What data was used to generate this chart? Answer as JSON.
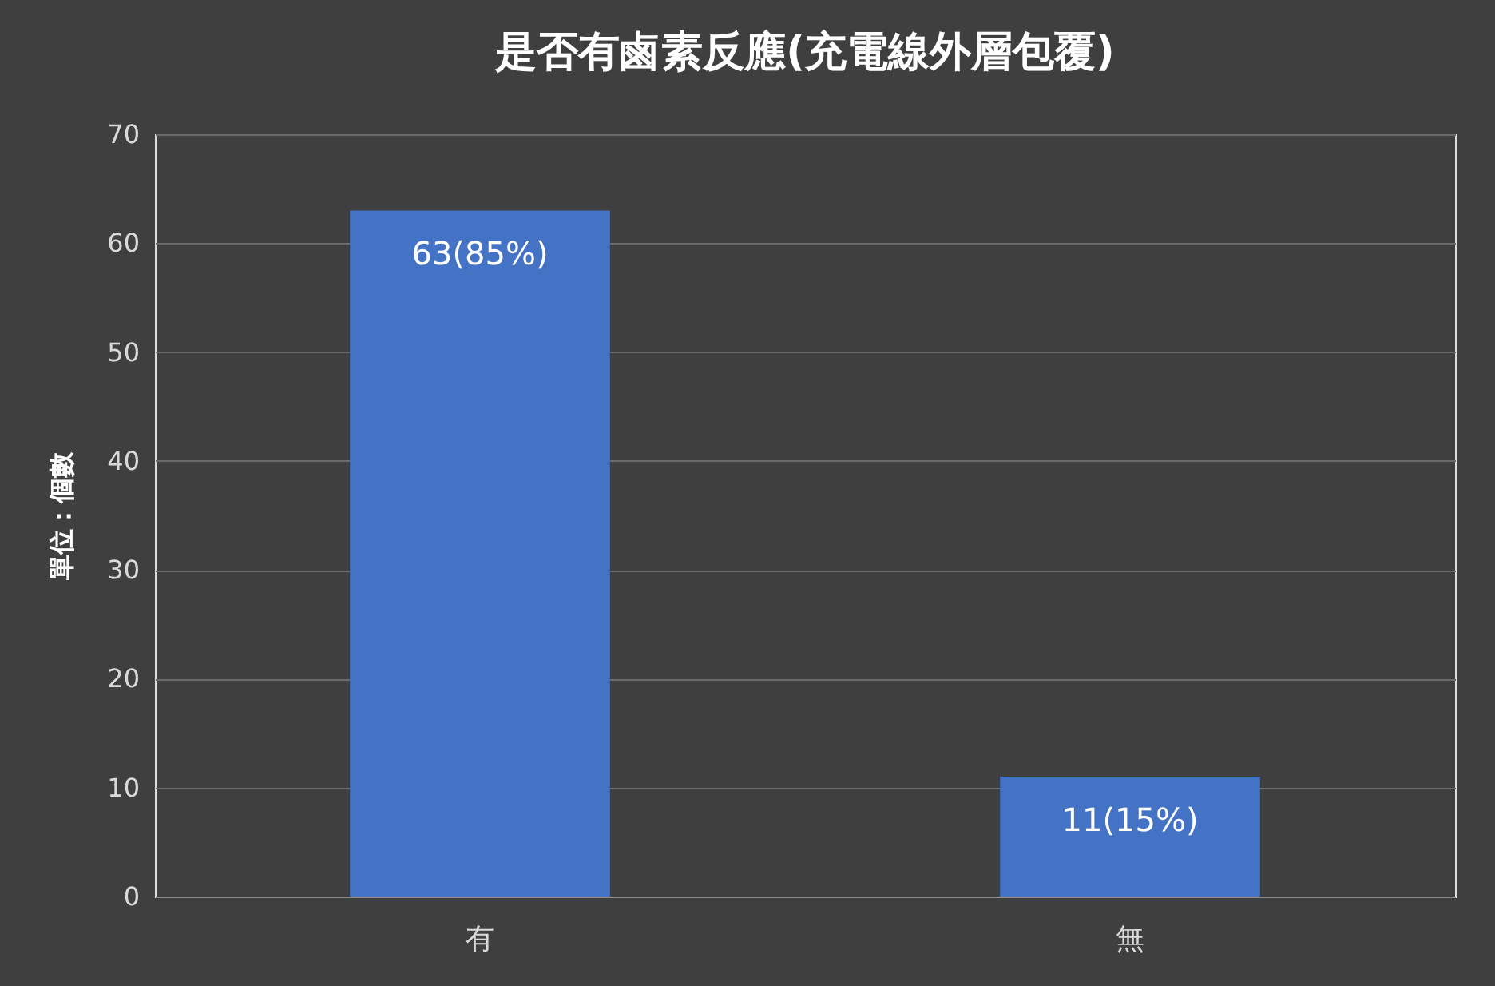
{
  "chart_data": {
    "type": "bar",
    "title": "是否有鹵素反應(充電線外層包覆)",
    "ylabel": "單位：個數",
    "categories": [
      "有",
      "無"
    ],
    "values": [
      63,
      11
    ],
    "color": "#4472c4",
    "value_labels": [
      "63(85%)",
      "11(15%)"
    ],
    "ylim": [
      0,
      70
    ],
    "yticks": [
      0,
      10,
      20,
      30,
      40,
      50,
      60,
      70
    ],
    "grid": "y"
  }
}
